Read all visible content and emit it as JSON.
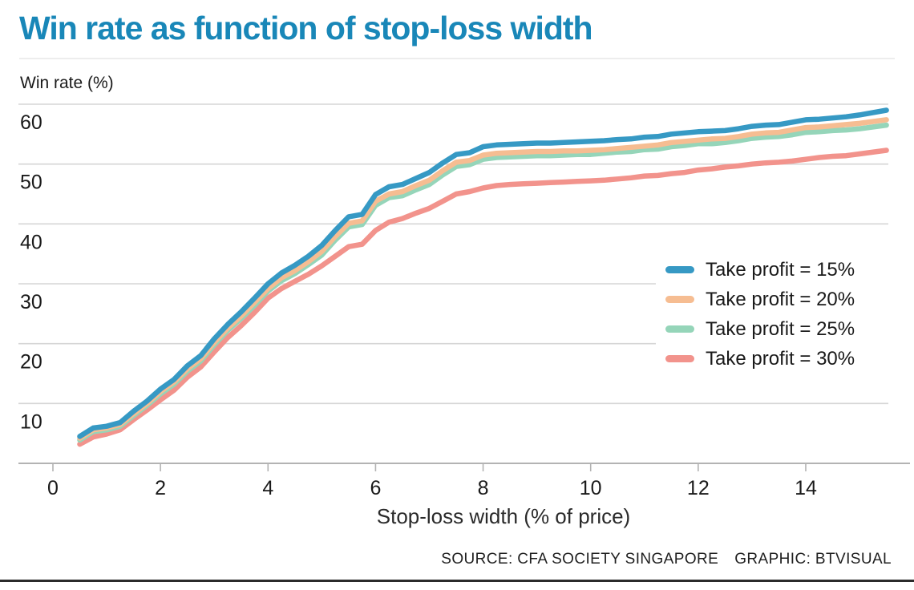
{
  "header": {
    "title": "Win rate as function of stop-loss width",
    "y_axis_unit_label": "Win rate (%)"
  },
  "footer": {
    "source": "SOURCE: CFA SOCIETY SINGAPORE",
    "graphic": "GRAPHIC: BTVISUAL"
  },
  "colors": {
    "title": "#1987b8",
    "text": "#1a1a1a",
    "grid": "#d6d6d6",
    "axis_line": "#9a9a9a",
    "tick": "#b3b3b3",
    "background": "#ffffff",
    "bottom_rule": "#2b2b2b"
  },
  "chart_data": {
    "type": "line",
    "title": "Win rate as function of stop-loss width",
    "xlabel": "Stop-loss width (% of price)",
    "ylabel": "Win rate (%)",
    "xlim": [
      0,
      16
    ],
    "ylim": [
      0,
      62
    ],
    "xticks": [
      0,
      2,
      4,
      6,
      8,
      10,
      12,
      14
    ],
    "yticks": [
      10,
      20,
      30,
      40,
      50,
      60
    ],
    "grid": "horizontal",
    "legend_position": "middle-right",
    "x": [
      0.5,
      0.75,
      1,
      1.25,
      1.5,
      1.75,
      2,
      2.25,
      2.5,
      2.75,
      3,
      3.25,
      3.5,
      3.75,
      4,
      4.25,
      4.5,
      4.75,
      5,
      5.25,
      5.5,
      5.75,
      6,
      6.25,
      6.5,
      6.75,
      7,
      7.25,
      7.5,
      7.75,
      8,
      8.25,
      8.5,
      8.75,
      9,
      9.25,
      9.5,
      9.75,
      10,
      10.25,
      10.5,
      10.75,
      11,
      11.25,
      11.5,
      11.75,
      12,
      12.25,
      12.5,
      12.75,
      13,
      13.25,
      13.5,
      13.75,
      14,
      14.25,
      14.5,
      14.75,
      15,
      15.5
    ],
    "series": [
      {
        "name": "Take profit = 15%",
        "color": "#3699c4",
        "values": [
          4.5,
          5.9,
          6.2,
          6.8,
          8.7,
          10.4,
          12.4,
          14.0,
          16.3,
          18.0,
          20.8,
          23.2,
          25.3,
          27.6,
          30.0,
          31.8,
          33.1,
          34.6,
          36.4,
          38.9,
          41.2,
          41.6,
          44.9,
          46.2,
          46.6,
          47.6,
          48.6,
          50.2,
          51.6,
          51.9,
          52.9,
          53.2,
          53.3,
          53.4,
          53.5,
          53.5,
          53.6,
          53.7,
          53.8,
          53.9,
          54.1,
          54.2,
          54.5,
          54.6,
          55.0,
          55.2,
          55.4,
          55.5,
          55.6,
          55.9,
          56.3,
          56.5,
          56.6,
          57.0,
          57.4,
          57.5,
          57.7,
          57.9,
          58.2,
          59.0
        ]
      },
      {
        "name": "Take profit = 20%",
        "color": "#f6bd92",
        "values": [
          4.2,
          5.6,
          5.9,
          6.5,
          8.3,
          10.0,
          12.0,
          13.6,
          15.8,
          17.5,
          20.2,
          22.6,
          24.6,
          26.9,
          29.2,
          31.0,
          32.2,
          33.7,
          35.4,
          37.9,
          40.1,
          40.5,
          43.8,
          45.0,
          45.4,
          46.4,
          47.3,
          48.9,
          50.3,
          50.6,
          51.5,
          51.8,
          51.9,
          52.0,
          52.1,
          52.1,
          52.2,
          52.2,
          52.3,
          52.4,
          52.6,
          52.8,
          53.0,
          53.2,
          53.6,
          53.8,
          54.0,
          54.2,
          54.3,
          54.6,
          55.0,
          55.2,
          55.3,
          55.7,
          56.1,
          56.2,
          56.4,
          56.6,
          56.8,
          57.4
        ]
      },
      {
        "name": "Take profit = 25%",
        "color": "#95d5b9",
        "values": [
          3.9,
          5.3,
          5.6,
          6.2,
          8.0,
          9.7,
          11.6,
          13.2,
          15.4,
          17.1,
          19.8,
          22.2,
          24.2,
          26.4,
          28.8,
          30.5,
          31.7,
          33.2,
          34.8,
          37.3,
          39.5,
          39.9,
          43.1,
          44.4,
          44.7,
          45.7,
          46.6,
          48.2,
          49.6,
          49.9,
          50.8,
          51.1,
          51.2,
          51.3,
          51.4,
          51.4,
          51.5,
          51.6,
          51.6,
          51.8,
          52.0,
          52.1,
          52.4,
          52.5,
          52.9,
          53.1,
          53.4,
          53.4,
          53.6,
          53.9,
          54.3,
          54.5,
          54.6,
          54.9,
          55.3,
          55.4,
          55.6,
          55.7,
          55.9,
          56.5
        ]
      },
      {
        "name": "Take profit = 30%",
        "color": "#f2938c",
        "values": [
          3.2,
          4.4,
          4.9,
          5.6,
          7.3,
          8.9,
          10.6,
          12.2,
          14.4,
          16.1,
          18.6,
          21.0,
          23.0,
          25.2,
          27.6,
          29.2,
          30.4,
          31.6,
          33.0,
          34.6,
          36.2,
          36.6,
          38.9,
          40.3,
          40.9,
          41.8,
          42.6,
          43.8,
          45.0,
          45.4,
          46.0,
          46.4,
          46.6,
          46.7,
          46.8,
          46.9,
          47.0,
          47.1,
          47.2,
          47.3,
          47.5,
          47.7,
          48.0,
          48.1,
          48.4,
          48.6,
          49.0,
          49.2,
          49.5,
          49.7,
          50.0,
          50.2,
          50.3,
          50.5,
          50.8,
          51.1,
          51.3,
          51.4,
          51.7,
          52.3
        ]
      }
    ]
  }
}
